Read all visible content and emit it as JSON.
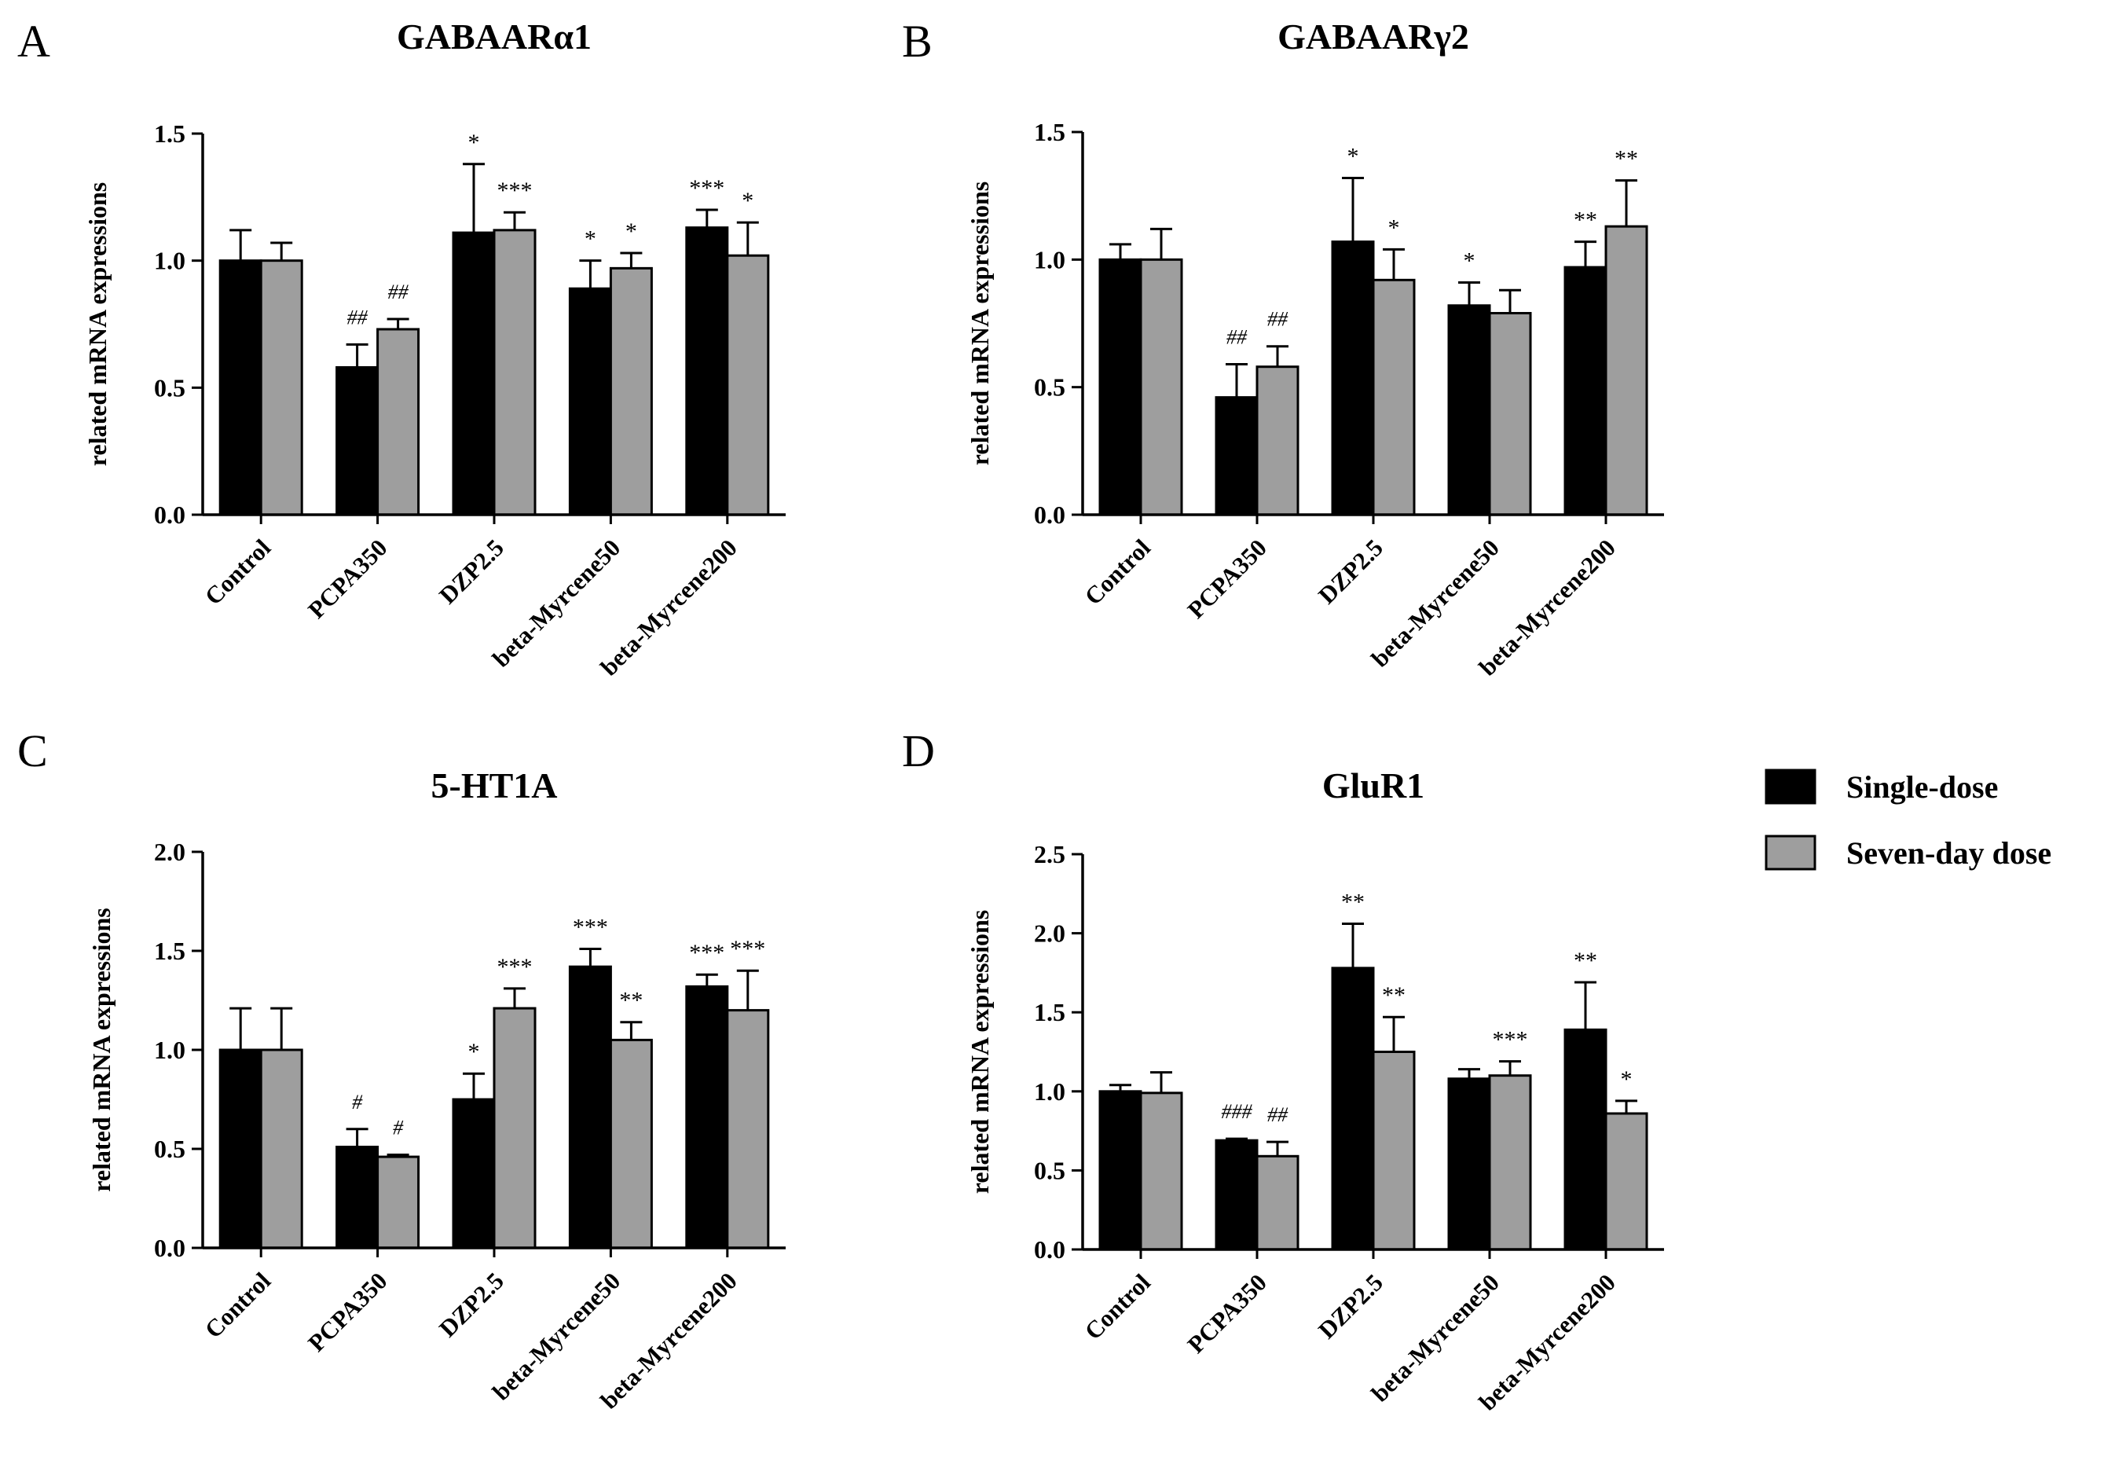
{
  "legend": {
    "series": [
      {
        "name": "Single-dose",
        "color": "#000000"
      },
      {
        "name": "Seven-day dose",
        "color": "#9e9e9e"
      }
    ]
  },
  "chart_data": [
    {
      "type": "bar",
      "panel": "A",
      "title": "GABAARα1",
      "xlabel": "",
      "ylabel": "related mRNA expressions",
      "ylim": [
        0,
        1.5
      ],
      "yticks": [
        "0.0",
        "0.5",
        "1.0",
        "1.5"
      ],
      "categories": [
        "Control",
        "PCPA350",
        "DZP2.5",
        "beta-Myrcene50",
        "beta-Myrcene200"
      ],
      "series": [
        {
          "name": "Single-dose",
          "values": [
            1.0,
            0.58,
            1.11,
            0.89,
            1.13
          ],
          "errors": [
            0.12,
            0.09,
            0.27,
            0.11,
            0.07
          ],
          "annotations": [
            "",
            "##",
            "*",
            "*",
            "***"
          ]
        },
        {
          "name": "Seven-day dose",
          "values": [
            1.0,
            0.73,
            1.12,
            0.97,
            1.02
          ],
          "errors": [
            0.07,
            0.04,
            0.07,
            0.06,
            0.13
          ],
          "annotations": [
            "",
            "##",
            "***",
            "*",
            "*"
          ]
        }
      ]
    },
    {
      "type": "bar",
      "panel": "B",
      "title": "GABAARγ2",
      "xlabel": "",
      "ylabel": "related mRNA expressions",
      "ylim": [
        0,
        1.5
      ],
      "yticks": [
        "0.0",
        "0.5",
        "1.0",
        "1.5"
      ],
      "categories": [
        "Control",
        "PCPA350",
        "DZP2.5",
        "beta-Myrcene50",
        "beta-Myrcene200"
      ],
      "series": [
        {
          "name": "Single-dose",
          "values": [
            1.0,
            0.46,
            1.07,
            0.82,
            0.97
          ],
          "errors": [
            0.06,
            0.13,
            0.25,
            0.09,
            0.1
          ],
          "annotations": [
            "",
            "##",
            "*",
            "*",
            "**"
          ]
        },
        {
          "name": "Seven-day dose",
          "values": [
            1.0,
            0.58,
            0.92,
            0.79,
            1.13
          ],
          "errors": [
            0.12,
            0.08,
            0.12,
            0.09,
            0.18
          ],
          "annotations": [
            "",
            "##",
            "*",
            "",
            "**"
          ]
        }
      ]
    },
    {
      "type": "bar",
      "panel": "C",
      "title": "5-HT1A",
      "xlabel": "",
      "ylabel": "related mRNA expressions",
      "ylim": [
        0,
        2.0
      ],
      "yticks": [
        "0.0",
        "0.5",
        "1.0",
        "1.5",
        "2.0"
      ],
      "categories": [
        "Control",
        "PCPA350",
        "DZP2.5",
        "beta-Myrcene50",
        "beta-Myrcene200"
      ],
      "series": [
        {
          "name": "Single-dose",
          "values": [
            1.0,
            0.51,
            0.75,
            1.42,
            1.32
          ],
          "errors": [
            0.21,
            0.09,
            0.13,
            0.09,
            0.06
          ],
          "annotations": [
            "",
            "#",
            "*",
            "***",
            "***"
          ]
        },
        {
          "name": "Seven-day dose",
          "values": [
            1.0,
            0.46,
            1.21,
            1.05,
            1.2
          ],
          "errors": [
            0.21,
            0.01,
            0.1,
            0.09,
            0.2
          ],
          "annotations": [
            "",
            "#",
            "***",
            "**",
            "***"
          ]
        }
      ]
    },
    {
      "type": "bar",
      "panel": "D",
      "title": "GluR1",
      "xlabel": "",
      "ylabel": "related mRNA expressions",
      "ylim": [
        0,
        2.5
      ],
      "yticks": [
        "0.0",
        "0.5",
        "1.0",
        "1.5",
        "2.0",
        "2.5"
      ],
      "categories": [
        "Control",
        "PCPA350",
        "DZP2.5",
        "beta-Myrcene50",
        "beta-Myrcene200"
      ],
      "series": [
        {
          "name": "Single-dose",
          "values": [
            1.0,
            0.69,
            1.78,
            1.08,
            1.39
          ],
          "errors": [
            0.04,
            0.01,
            0.28,
            0.06,
            0.3
          ],
          "annotations": [
            "",
            "###",
            "**",
            "",
            "**"
          ]
        },
        {
          "name": "Seven-day dose",
          "values": [
            0.99,
            0.59,
            1.25,
            1.1,
            0.86
          ],
          "errors": [
            0.13,
            0.09,
            0.22,
            0.09,
            0.08
          ],
          "annotations": [
            "",
            "##",
            "**",
            "***",
            "*"
          ]
        }
      ]
    }
  ]
}
